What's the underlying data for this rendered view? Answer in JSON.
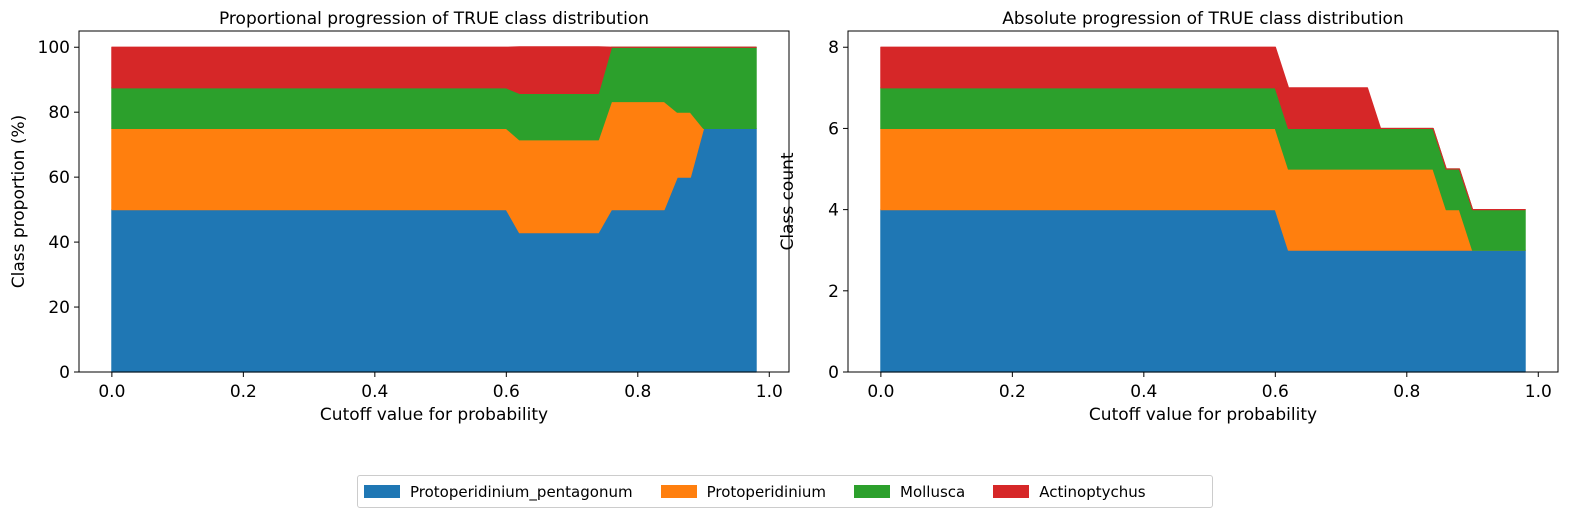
{
  "chart_data": [
    {
      "type": "area",
      "title": "Proportional progression of TRUE class distribution",
      "xlabel": "Cutoff value for probability",
      "ylabel": "Class proportion (%)",
      "xlim": [
        -0.05,
        1.03
      ],
      "ylim": [
        0,
        105
      ],
      "xticks": [
        0.0,
        0.2,
        0.4,
        0.6,
        0.8,
        1.0
      ],
      "xtick_labels": [
        "0.0",
        "0.2",
        "0.4",
        "0.6",
        "0.8",
        "1.0"
      ],
      "yticks": [
        0,
        20,
        40,
        60,
        80,
        100
      ],
      "ytick_labels": [
        "0",
        "20",
        "40",
        "60",
        "80",
        "100"
      ],
      "stacked": true,
      "x": [
        0.0,
        0.6,
        0.62,
        0.74,
        0.76,
        0.84,
        0.86,
        0.88,
        0.9,
        0.98
      ],
      "series": [
        {
          "name": "Protoperidinium_pentagonum",
          "values": [
            50,
            50,
            42.9,
            42.9,
            50,
            50,
            60,
            60,
            75,
            75
          ]
        },
        {
          "name": "Protoperidinium",
          "values": [
            25,
            25,
            28.6,
            28.6,
            33.3,
            33.3,
            20,
            20,
            0,
            0
          ]
        },
        {
          "name": "Mollusca",
          "values": [
            12.5,
            12.5,
            14.3,
            14.3,
            16.7,
            16.7,
            20,
            20,
            25,
            25
          ]
        },
        {
          "name": "Actinoptychus",
          "values": [
            12.5,
            12.5,
            14.3,
            14.3,
            0,
            0,
            0,
            0,
            0,
            0
          ]
        }
      ],
      "grid": false
    },
    {
      "type": "area",
      "title": "Absolute progression of TRUE class distribution",
      "xlabel": "Cutoff value for probability",
      "ylabel": "Class count",
      "xlim": [
        -0.05,
        1.03
      ],
      "ylim": [
        0,
        8.4
      ],
      "xticks": [
        0.0,
        0.2,
        0.4,
        0.6,
        0.8,
        1.0
      ],
      "xtick_labels": [
        "0.0",
        "0.2",
        "0.4",
        "0.6",
        "0.8",
        "1.0"
      ],
      "yticks": [
        0,
        2,
        4,
        6,
        8
      ],
      "ytick_labels": [
        "0",
        "2",
        "4",
        "6",
        "8"
      ],
      "stacked": true,
      "x": [
        0.0,
        0.6,
        0.62,
        0.74,
        0.76,
        0.84,
        0.86,
        0.88,
        0.9,
        0.98
      ],
      "series": [
        {
          "name": "Protoperidinium_pentagonum",
          "values": [
            4,
            4,
            3,
            3,
            3,
            3,
            3,
            3,
            3,
            3
          ]
        },
        {
          "name": "Protoperidinium",
          "values": [
            2,
            2,
            2,
            2,
            2,
            2,
            1,
            1,
            0,
            0
          ]
        },
        {
          "name": "Mollusca",
          "values": [
            1,
            1,
            1,
            1,
            1,
            1,
            1,
            1,
            1,
            1
          ]
        },
        {
          "name": "Actinoptychus",
          "values": [
            1,
            1,
            1,
            1,
            0,
            0,
            0,
            0,
            0,
            0
          ]
        }
      ],
      "grid": false
    }
  ],
  "legend": {
    "placement": "bottom-center",
    "items": [
      {
        "label": "Protoperidinium_pentagonum",
        "color": "#1f77b4"
      },
      {
        "label": "Protoperidinium",
        "color": "#ff7f0e"
      },
      {
        "label": "Mollusca",
        "color": "#2ca02c"
      },
      {
        "label": "Actinoptychus",
        "color": "#d62728"
      }
    ]
  }
}
